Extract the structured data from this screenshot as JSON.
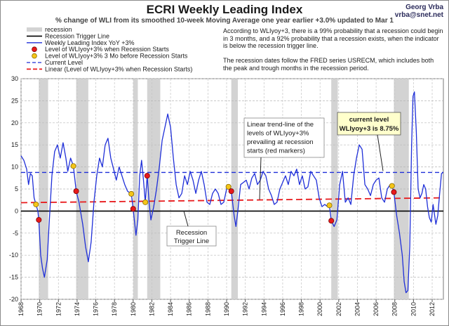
{
  "author": {
    "name": "Georg Vrba",
    "email": "vrba@snet.net"
  },
  "notes": {
    "prob": "According to WLIyoy+3, there is a 99% probability that a recession could begin in 3 months, and a 92% probability that a recession exists, when the indicator is below the recession trigger line.",
    "dates": "The recession dates follow the FRED series USRECM, which includes both the peak and trough months in the recession period."
  },
  "annotations": {
    "trend": [
      "Linear trend-line of the",
      "levels of WLIyoy+3%",
      "prevailing at recession",
      "starts (red markers)"
    ],
    "current": [
      "current level",
      "WLIyoy+3 is 8.75%"
    ],
    "trigger": [
      "Recession",
      "Trigger Line"
    ]
  },
  "colors": {
    "wli": "#1f2fd8",
    "recession": "#d3d3d3",
    "trigger": "#000000",
    "current": "#1f2fd8",
    "linear": "#e8191b",
    "marker_red": "#e8191b",
    "marker_yellow": "#f5c518",
    "callout_bg": "#ffffcc"
  },
  "chart_data": {
    "type": "line",
    "title": "ECRI Weekly Leading Index",
    "subtitle": "% change of WLI from its smoothed 10-week Moving Average one year earlier +3.0% updated to Mar 1",
    "xlim": [
      1968,
      2013.2
    ],
    "ylim": [
      -20,
      30
    ],
    "x_ticks": [
      1968,
      1970,
      1972,
      1974,
      1976,
      1978,
      1980,
      1982,
      1984,
      1986,
      1988,
      1990,
      1992,
      1994,
      1996,
      1998,
      2000,
      2002,
      2004,
      2006,
      2008,
      2010,
      2012
    ],
    "y_ticks": [
      -20,
      -15,
      -10,
      -5,
      0,
      5,
      10,
      15,
      20,
      25,
      30
    ],
    "grid": true,
    "legend_position": "top-left",
    "legend": [
      "recession",
      "Recession Trigger Line",
      "Weekly Leading Index YoY +3%",
      "Level of WLIyoy+3% when Recession Starts",
      "Level of WLIyoy+3% 3 Mo before Recession Starts",
      "Current Level",
      "Linear (Level of WLIyoy+3% when Recession Starts)"
    ],
    "recessions": [
      [
        1969.9,
        1970.9
      ],
      [
        1973.9,
        1975.2
      ],
      [
        1980.0,
        1980.5
      ],
      [
        1981.5,
        1982.9
      ],
      [
        1990.5,
        1991.2
      ],
      [
        2001.2,
        2001.9
      ],
      [
        2007.9,
        2009.5
      ]
    ],
    "trigger_level": 0,
    "current_level": 8.75,
    "linear_trend": {
      "x": [
        1968,
        2013.2
      ],
      "y": [
        1.9,
        3.0
      ]
    },
    "markers_at_start": [
      [
        1969.9,
        -2.0
      ],
      [
        1973.9,
        4.5
      ],
      [
        1980.0,
        0.5
      ],
      [
        1981.5,
        8.0
      ],
      [
        1990.5,
        4.5
      ],
      [
        2001.2,
        -2.2
      ],
      [
        2007.9,
        4.3
      ]
    ],
    "markers_3mo_before": [
      [
        1969.6,
        1.5
      ],
      [
        1973.6,
        10.2
      ],
      [
        1979.8,
        3.9
      ],
      [
        1981.3,
        2.0
      ],
      [
        1990.2,
        5.5
      ],
      [
        2001.0,
        1.3
      ],
      [
        2007.7,
        5.7
      ]
    ],
    "series": [
      {
        "name": "Weekly Leading Index YoY +3%",
        "points": [
          [
            1968.0,
            12.5
          ],
          [
            1968.3,
            11.5
          ],
          [
            1968.6,
            9.5
          ],
          [
            1968.8,
            6.0
          ],
          [
            1969.0,
            8.5
          ],
          [
            1969.2,
            8.0
          ],
          [
            1969.4,
            3.0
          ],
          [
            1969.6,
            1.5
          ],
          [
            1969.8,
            0.0
          ],
          [
            1969.9,
            -2.0
          ],
          [
            1970.1,
            -10.0
          ],
          [
            1970.3,
            -13.0
          ],
          [
            1970.5,
            -15.0
          ],
          [
            1970.8,
            -11.0
          ],
          [
            1971.0,
            -3.0
          ],
          [
            1971.3,
            8.0
          ],
          [
            1971.6,
            13.5
          ],
          [
            1971.9,
            15.0
          ],
          [
            1972.2,
            12.0
          ],
          [
            1972.5,
            15.5
          ],
          [
            1972.8,
            12.0
          ],
          [
            1973.0,
            9.0
          ],
          [
            1973.3,
            12.0
          ],
          [
            1973.6,
            10.2
          ],
          [
            1973.9,
            4.5
          ],
          [
            1974.2,
            2.0
          ],
          [
            1974.6,
            -3.0
          ],
          [
            1974.9,
            -8.0
          ],
          [
            1975.2,
            -11.5
          ],
          [
            1975.5,
            -7.0
          ],
          [
            1975.8,
            2.0
          ],
          [
            1976.1,
            8.0
          ],
          [
            1976.4,
            12.0
          ],
          [
            1976.7,
            10.0
          ],
          [
            1977.0,
            15.0
          ],
          [
            1977.3,
            16.5
          ],
          [
            1977.6,
            12.0
          ],
          [
            1977.9,
            9.5
          ],
          [
            1978.2,
            7.0
          ],
          [
            1978.5,
            10.0
          ],
          [
            1978.8,
            8.0
          ],
          [
            1979.1,
            6.0
          ],
          [
            1979.4,
            4.5
          ],
          [
            1979.8,
            3.9
          ],
          [
            1980.0,
            0.5
          ],
          [
            1980.3,
            -5.5
          ],
          [
            1980.5,
            -2.0
          ],
          [
            1980.7,
            8.0
          ],
          [
            1980.9,
            11.5
          ],
          [
            1981.1,
            7.0
          ],
          [
            1981.3,
            2.0
          ],
          [
            1981.5,
            8.0
          ],
          [
            1981.7,
            2.0
          ],
          [
            1981.9,
            -2.0
          ],
          [
            1982.2,
            1.0
          ],
          [
            1982.5,
            5.0
          ],
          [
            1982.8,
            10.0
          ],
          [
            1983.1,
            16.0
          ],
          [
            1983.4,
            19.0
          ],
          [
            1983.7,
            22.0
          ],
          [
            1984.0,
            19.0
          ],
          [
            1984.3,
            12.0
          ],
          [
            1984.6,
            6.0
          ],
          [
            1984.9,
            3.0
          ],
          [
            1985.2,
            4.0
          ],
          [
            1985.5,
            8.0
          ],
          [
            1985.8,
            6.0
          ],
          [
            1986.1,
            9.0
          ],
          [
            1986.4,
            7.0
          ],
          [
            1986.7,
            4.0
          ],
          [
            1987.0,
            7.0
          ],
          [
            1987.3,
            9.0
          ],
          [
            1987.6,
            6.0
          ],
          [
            1987.9,
            2.0
          ],
          [
            1988.2,
            1.5
          ],
          [
            1988.5,
            4.0
          ],
          [
            1988.8,
            5.0
          ],
          [
            1989.1,
            4.0
          ],
          [
            1989.4,
            1.5
          ],
          [
            1989.7,
            2.0
          ],
          [
            1990.0,
            5.0
          ],
          [
            1990.2,
            5.5
          ],
          [
            1990.5,
            4.5
          ],
          [
            1990.8,
            -1.0
          ],
          [
            1991.0,
            -3.5
          ],
          [
            1991.2,
            0.0
          ],
          [
            1991.5,
            6.0
          ],
          [
            1991.8,
            6.5
          ],
          [
            1992.1,
            7.0
          ],
          [
            1992.4,
            5.0
          ],
          [
            1992.7,
            7.5
          ],
          [
            1993.0,
            8.5
          ],
          [
            1993.3,
            6.0
          ],
          [
            1993.6,
            7.0
          ],
          [
            1993.9,
            9.0
          ],
          [
            1994.2,
            8.0
          ],
          [
            1994.5,
            5.0
          ],
          [
            1994.8,
            3.5
          ],
          [
            1995.1,
            1.5
          ],
          [
            1995.4,
            2.0
          ],
          [
            1995.7,
            5.0
          ],
          [
            1996.0,
            6.5
          ],
          [
            1996.3,
            8.0
          ],
          [
            1996.6,
            6.0
          ],
          [
            1996.9,
            9.0
          ],
          [
            1997.2,
            8.0
          ],
          [
            1997.5,
            9.5
          ],
          [
            1997.8,
            6.0
          ],
          [
            1998.1,
            8.0
          ],
          [
            1998.4,
            5.0
          ],
          [
            1998.7,
            5.5
          ],
          [
            1999.0,
            9.0
          ],
          [
            1999.3,
            8.0
          ],
          [
            1999.6,
            7.0
          ],
          [
            1999.9,
            3.0
          ],
          [
            2000.2,
            1.0
          ],
          [
            2000.5,
            1.5
          ],
          [
            2000.8,
            1.0
          ],
          [
            2001.0,
            1.3
          ],
          [
            2001.2,
            -2.2
          ],
          [
            2001.5,
            -3.5
          ],
          [
            2001.8,
            -2.0
          ],
          [
            2002.1,
            6.0
          ],
          [
            2002.4,
            9.0
          ],
          [
            2002.7,
            2.0
          ],
          [
            2003.0,
            3.0
          ],
          [
            2003.3,
            1.5
          ],
          [
            2003.6,
            8.0
          ],
          [
            2003.9,
            12.0
          ],
          [
            2004.2,
            15.0
          ],
          [
            2004.5,
            14.0
          ],
          [
            2004.8,
            6.0
          ],
          [
            2005.1,
            5.0
          ],
          [
            2005.4,
            3.5
          ],
          [
            2005.7,
            6.0
          ],
          [
            2006.0,
            7.0
          ],
          [
            2006.3,
            7.5
          ],
          [
            2006.6,
            3.0
          ],
          [
            2006.9,
            2.0
          ],
          [
            2007.2,
            5.0
          ],
          [
            2007.5,
            6.0
          ],
          [
            2007.7,
            5.7
          ],
          [
            2007.9,
            4.3
          ],
          [
            2008.2,
            -1.0
          ],
          [
            2008.5,
            -5.0
          ],
          [
            2008.8,
            -10.0
          ],
          [
            2009.0,
            -16.0
          ],
          [
            2009.2,
            -18.5
          ],
          [
            2009.4,
            -18.0
          ],
          [
            2009.6,
            -8.0
          ],
          [
            2009.8,
            15.0
          ],
          [
            2009.95,
            26.0
          ],
          [
            2010.1,
            27.0
          ],
          [
            2010.3,
            18.0
          ],
          [
            2010.5,
            5.0
          ],
          [
            2010.7,
            3.0
          ],
          [
            2010.9,
            4.0
          ],
          [
            2011.1,
            6.0
          ],
          [
            2011.3,
            5.0
          ],
          [
            2011.5,
            1.0
          ],
          [
            2011.7,
            -1.5
          ],
          [
            2011.9,
            -2.5
          ],
          [
            2012.1,
            1.5
          ],
          [
            2012.4,
            -3.0
          ],
          [
            2012.6,
            -1.0
          ],
          [
            2012.8,
            4.0
          ],
          [
            2013.0,
            8.5
          ],
          [
            2013.17,
            8.75
          ]
        ]
      }
    ]
  }
}
